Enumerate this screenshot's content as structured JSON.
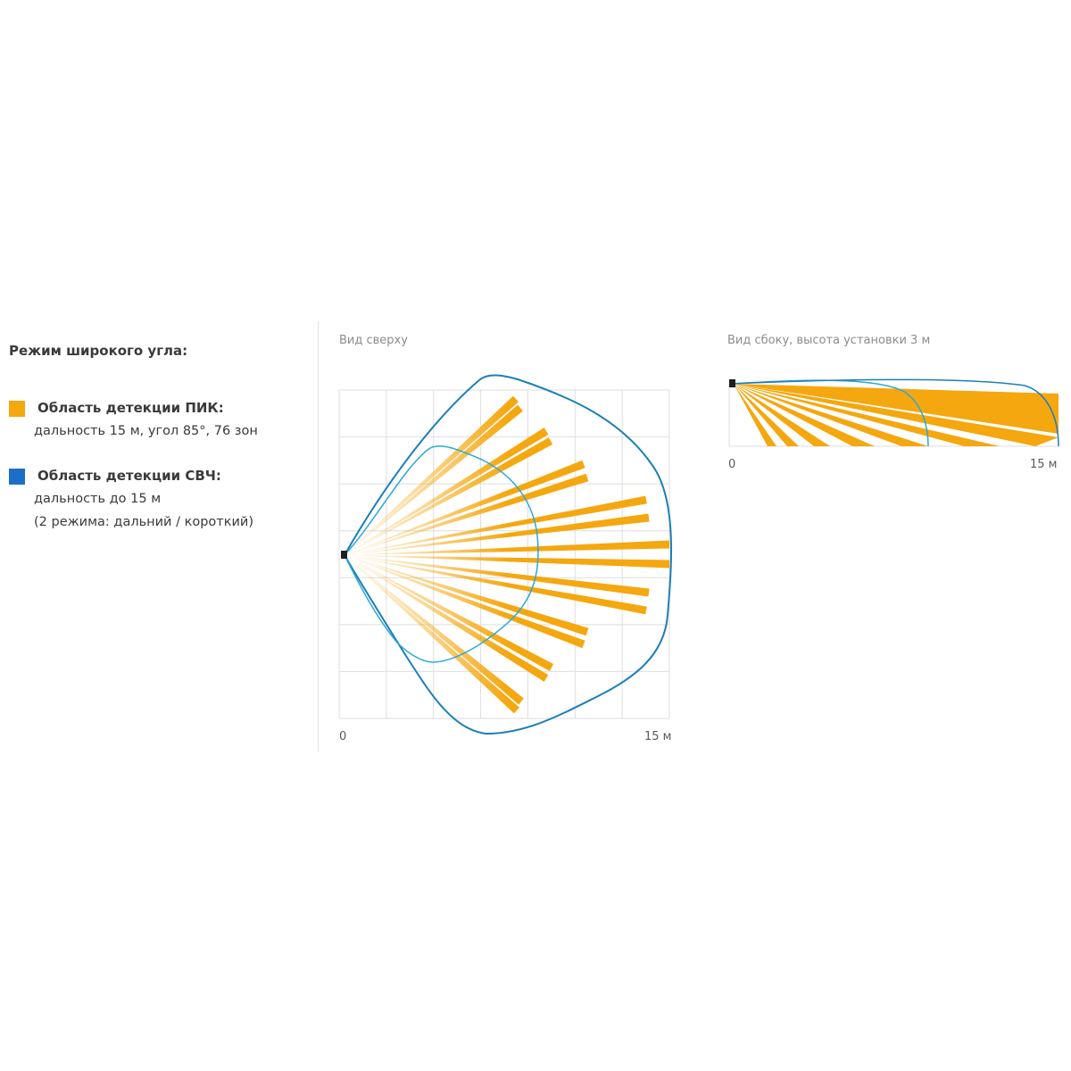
{
  "legend": {
    "title": "Режим широкого угла:",
    "pir": {
      "heading": "Область детекции ПИК:",
      "line1": "дальность 15 м, угол 85°, 76 зон",
      "color": "#f5a70f"
    },
    "mw": {
      "heading": "Область детекции СВЧ:",
      "line1": "дальность до 15 м",
      "line2": "(2 режима: дальний / короткий)",
      "color": "#1b6fc9"
    }
  },
  "top_view": {
    "title": "Вид сверху",
    "axis_start": "0",
    "axis_end": "15 м"
  },
  "side_view": {
    "title": "Вид сбоку, высота установки 3 м",
    "axis_start": "0",
    "axis_end": "15 м"
  },
  "colors": {
    "pir": "#f5a70f",
    "mw_long": "#1d7fb7",
    "mw_short": "#29a9d6",
    "grid": "#dedede",
    "device": "#1f1f1f"
  }
}
